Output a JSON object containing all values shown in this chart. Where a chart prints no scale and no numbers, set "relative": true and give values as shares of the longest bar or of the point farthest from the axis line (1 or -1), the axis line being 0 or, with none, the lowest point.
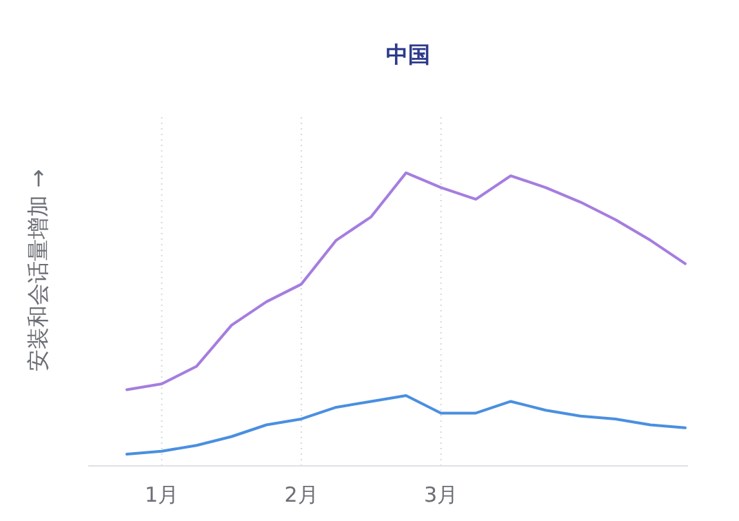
{
  "chart_data": {
    "type": "line",
    "title": "中国",
    "ylabel": "安装和会话量增加 →",
    "relative": true,
    "grid": "x",
    "categories": [
      null,
      "1月",
      null,
      null,
      null,
      "2月",
      null,
      null,
      null,
      "3月",
      null,
      null,
      null,
      null,
      null,
      null,
      null
    ],
    "series": [
      {
        "color": "#a57ddf",
        "values": [
          0.26,
          0.28,
          0.34,
          0.48,
          0.56,
          0.62,
          0.77,
          0.85,
          1,
          0.95,
          0.91,
          0.99,
          0.95,
          0.9,
          0.84,
          0.77,
          0.69
        ]
      },
      {
        "color": "#4a8fe0",
        "values": [
          0.04,
          0.05,
          0.07,
          0.1,
          0.14,
          0.16,
          0.2,
          0.22,
          0.24,
          0.18,
          0.18,
          0.22,
          0.19,
          0.17,
          0.16,
          0.14,
          0.13
        ]
      }
    ]
  }
}
